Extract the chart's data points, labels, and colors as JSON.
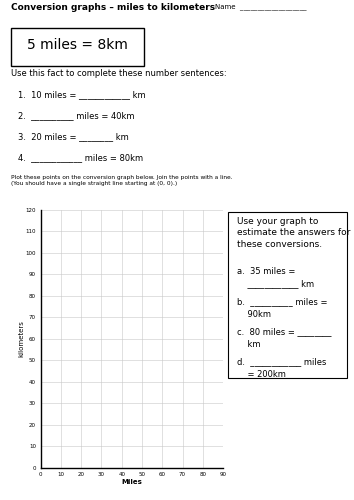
{
  "title": "Conversion graphs – miles to kilometers",
  "name_label": "Name",
  "name_line": "___________________",
  "fact_box": "5 miles = 8km",
  "instruction": "Use this fact to complete these number sentences:",
  "questions": [
    "1.  10 miles = ____________ km",
    "2.  __________ miles = 40km",
    "3.  20 miles = ________ km",
    "4.  ____________ miles = 80km"
  ],
  "plot_instruction": "Plot these points on the conversion graph below. Join the points with a line. (You should have a single straight line starting at (0, 0).)",
  "xlabel": "Miles",
  "ylabel": "kilometers",
  "x_ticks": [
    0,
    10,
    20,
    30,
    40,
    50,
    60,
    70,
    80,
    90
  ],
  "y_ticks": [
    0,
    10,
    20,
    30,
    40,
    50,
    60,
    70,
    80,
    90,
    100,
    110,
    120
  ],
  "xlim": [
    0,
    90
  ],
  "ylim": [
    0,
    120
  ],
  "side_box_title": "Use your graph to\nestimate the answers for\nthese conversions.",
  "side_questions": [
    "a.  35 miles =\n    ____________ km",
    "b.  __________ miles =\n    90km",
    "c.  80 miles = ________\n    km",
    "d.  ____________ miles\n    = 200km"
  ],
  "bg_color": "#ffffff",
  "grid_color": "#c8c8c8",
  "text_color": "#000000",
  "title_fontsize": 6.5,
  "fact_fontsize": 10,
  "body_fontsize": 6,
  "small_fontsize": 5,
  "plot_instr_fontsize": 4.2,
  "side_title_fontsize": 6.5,
  "side_q_fontsize": 6,
  "tick_fontsize": 4,
  "axis_label_fontsize": 5
}
